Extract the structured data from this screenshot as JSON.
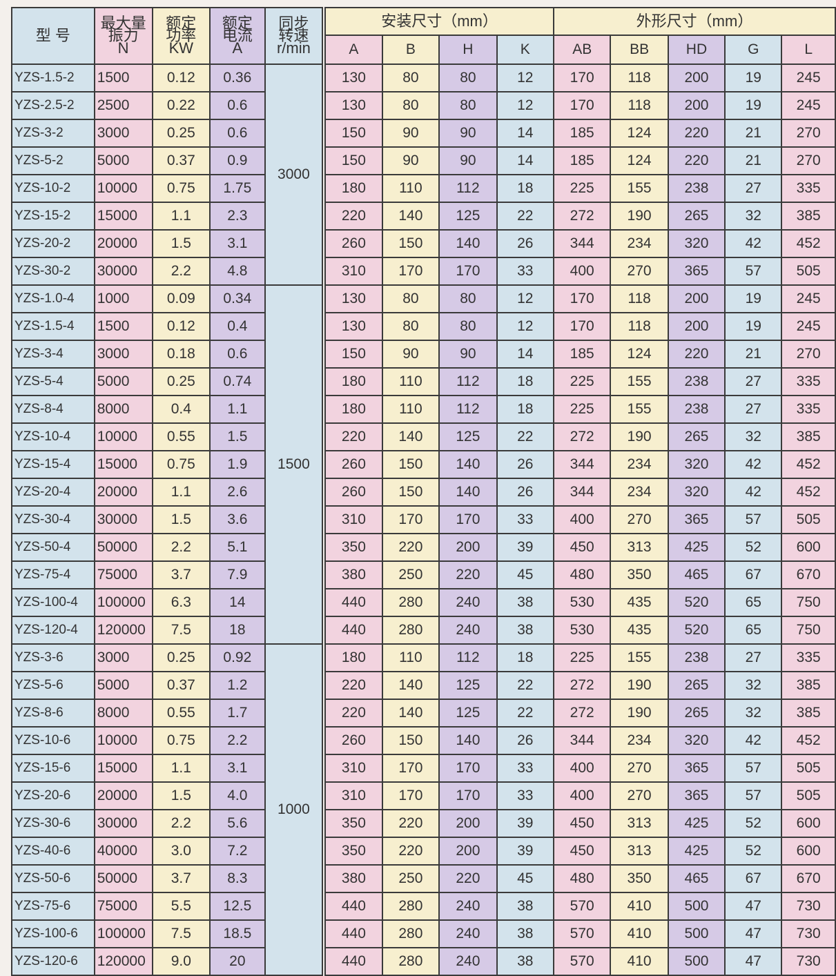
{
  "header": {
    "model": "型 号",
    "force": [
      "最大量",
      "振力",
      "N"
    ],
    "power": [
      "额定",
      "功率",
      "KW"
    ],
    "current": [
      "额定",
      "电流",
      "A"
    ],
    "speed": [
      "同步",
      "转速",
      "r/min"
    ],
    "install_group": "安装尺寸（mm）",
    "install_cols": [
      "A",
      "B",
      "H",
      "K"
    ],
    "outline_group": "外形尺寸（mm）",
    "outline_cols": [
      "AB",
      "BB",
      "HD",
      "G",
      "L"
    ]
  },
  "groups": [
    {
      "speed": "3000",
      "rows": [
        [
          "YZS-1.5-2",
          "1500",
          "0.12",
          "0.36",
          "130",
          "80",
          "80",
          "12",
          "170",
          "118",
          "200",
          "19",
          "245"
        ],
        [
          "YZS-2.5-2",
          "2500",
          "0.22",
          "0.6",
          "130",
          "80",
          "80",
          "12",
          "170",
          "118",
          "200",
          "19",
          "245"
        ],
        [
          "YZS-3-2",
          "3000",
          "0.25",
          "0.6",
          "150",
          "90",
          "90",
          "14",
          "185",
          "124",
          "220",
          "21",
          "270"
        ],
        [
          "YZS-5-2",
          "5000",
          "0.37",
          "0.9",
          "150",
          "90",
          "90",
          "14",
          "185",
          "124",
          "220",
          "21",
          "270"
        ],
        [
          "YZS-10-2",
          "10000",
          "0.75",
          "1.75",
          "180",
          "110",
          "112",
          "18",
          "225",
          "155",
          "238",
          "27",
          "335"
        ],
        [
          "YZS-15-2",
          "15000",
          "1.1",
          "2.3",
          "220",
          "140",
          "125",
          "22",
          "272",
          "190",
          "265",
          "32",
          "385"
        ],
        [
          "YZS-20-2",
          "20000",
          "1.5",
          "3.1",
          "260",
          "150",
          "140",
          "26",
          "344",
          "234",
          "320",
          "42",
          "452"
        ],
        [
          "YZS-30-2",
          "30000",
          "2.2",
          "4.8",
          "310",
          "170",
          "170",
          "33",
          "400",
          "270",
          "365",
          "57",
          "505"
        ]
      ]
    },
    {
      "speed": "1500",
      "rows": [
        [
          "YZS-1.0-4",
          "1000",
          "0.09",
          "0.34",
          "130",
          "80",
          "80",
          "12",
          "170",
          "118",
          "200",
          "19",
          "245"
        ],
        [
          "YZS-1.5-4",
          "1500",
          "0.12",
          "0.4",
          "130",
          "80",
          "80",
          "12",
          "170",
          "118",
          "200",
          "19",
          "245"
        ],
        [
          "YZS-3-4",
          "3000",
          "0.18",
          "0.6",
          "150",
          "90",
          "90",
          "14",
          "185",
          "124",
          "220",
          "21",
          "270"
        ],
        [
          "YZS-5-4",
          "5000",
          "0.25",
          "0.74",
          "180",
          "110",
          "112",
          "18",
          "225",
          "155",
          "238",
          "27",
          "335"
        ],
        [
          "YZS-8-4",
          "8000",
          "0.4",
          "1.1",
          "180",
          "110",
          "112",
          "18",
          "225",
          "155",
          "238",
          "27",
          "335"
        ],
        [
          "YZS-10-4",
          "10000",
          "0.55",
          "1.5",
          "220",
          "140",
          "125",
          "22",
          "272",
          "190",
          "265",
          "32",
          "385"
        ],
        [
          "YZS-15-4",
          "15000",
          "0.75",
          "1.9",
          "260",
          "150",
          "140",
          "26",
          "344",
          "234",
          "320",
          "42",
          "452"
        ],
        [
          "YZS-20-4",
          "20000",
          "1.1",
          "2.6",
          "260",
          "150",
          "140",
          "26",
          "344",
          "234",
          "320",
          "42",
          "452"
        ],
        [
          "YZS-30-4",
          "30000",
          "1.5",
          "3.6",
          "310",
          "170",
          "170",
          "33",
          "400",
          "270",
          "365",
          "57",
          "505"
        ],
        [
          "YZS-50-4",
          "50000",
          "2.2",
          "5.1",
          "350",
          "220",
          "200",
          "39",
          "450",
          "313",
          "425",
          "52",
          "600"
        ],
        [
          "YZS-75-4",
          "75000",
          "3.7",
          "7.9",
          "380",
          "250",
          "220",
          "45",
          "480",
          "350",
          "465",
          "67",
          "670"
        ],
        [
          "YZS-100-4",
          "100000",
          "6.3",
          "14",
          "440",
          "280",
          "240",
          "38",
          "530",
          "435",
          "520",
          "65",
          "750"
        ],
        [
          "YZS-120-4",
          "120000",
          "7.5",
          "18",
          "440",
          "280",
          "240",
          "38",
          "530",
          "435",
          "520",
          "65",
          "750"
        ]
      ]
    },
    {
      "speed": "1000",
      "rows": [
        [
          "YZS-3-6",
          "3000",
          "0.25",
          "0.92",
          "180",
          "110",
          "112",
          "18",
          "225",
          "155",
          "238",
          "27",
          "335"
        ],
        [
          "YZS-5-6",
          "5000",
          "0.37",
          "1.2",
          "220",
          "140",
          "125",
          "22",
          "272",
          "190",
          "265",
          "32",
          "385"
        ],
        [
          "YZS-8-6",
          "8000",
          "0.55",
          "1.7",
          "220",
          "140",
          "125",
          "22",
          "272",
          "190",
          "265",
          "32",
          "385"
        ],
        [
          "YZS-10-6",
          "10000",
          "0.75",
          "2.2",
          "260",
          "150",
          "140",
          "26",
          "344",
          "234",
          "320",
          "42",
          "452"
        ],
        [
          "YZS-15-6",
          "15000",
          "1.1",
          "3.1",
          "310",
          "170",
          "170",
          "33",
          "400",
          "270",
          "365",
          "57",
          "505"
        ],
        [
          "YZS-20-6",
          "20000",
          "1.5",
          "4.0",
          "310",
          "170",
          "170",
          "33",
          "400",
          "270",
          "365",
          "57",
          "505"
        ],
        [
          "YZS-30-6",
          "30000",
          "2.2",
          "5.6",
          "350",
          "220",
          "200",
          "39",
          "450",
          "313",
          "425",
          "52",
          "600"
        ],
        [
          "YZS-40-6",
          "40000",
          "3.0",
          "7.2",
          "350",
          "220",
          "200",
          "39",
          "450",
          "313",
          "425",
          "52",
          "600"
        ],
        [
          "YZS-50-6",
          "50000",
          "3.7",
          "8.3",
          "380",
          "250",
          "220",
          "45",
          "480",
          "350",
          "465",
          "67",
          "670"
        ],
        [
          "YZS-75-6",
          "75000",
          "5.5",
          "12.5",
          "440",
          "280",
          "240",
          "38",
          "570",
          "410",
          "500",
          "47",
          "730"
        ],
        [
          "YZS-100-6",
          "100000",
          "7.5",
          "18.5",
          "440",
          "280",
          "240",
          "38",
          "570",
          "410",
          "500",
          "47",
          "730"
        ],
        [
          "YZS-120-6",
          "120000",
          "9.0",
          "20",
          "440",
          "280",
          "240",
          "38",
          "570",
          "410",
          "500",
          "47",
          "730"
        ]
      ]
    }
  ]
}
